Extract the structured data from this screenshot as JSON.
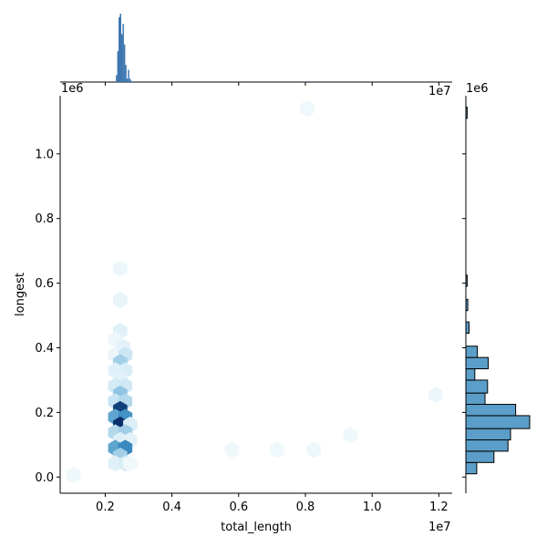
{
  "chart_data": {
    "type": "hexbin",
    "xlabel": "total_length",
    "ylabel": "longest",
    "x_offset_label": "1e7",
    "y_offset_label": "1e6",
    "xlim": [
      0.065,
      1.24
    ],
    "ylim": [
      -0.05,
      1.18
    ],
    "x_ticks": [
      0.2,
      0.4,
      0.6,
      0.8,
      1.0,
      1.2
    ],
    "x_tick_labels": [
      "0.2",
      "0.4",
      "0.6",
      "0.8",
      "1.0",
      "1.2"
    ],
    "y_ticks": [
      0.0,
      0.2,
      0.4,
      0.6,
      0.8,
      1.0
    ],
    "y_tick_labels": [
      "0.0",
      "0.2",
      "0.4",
      "0.6",
      "0.8",
      "1.0"
    ],
    "colormap": [
      "#f7fcfd",
      "#c6e4f3",
      "#6baed6",
      "#2c7fb8",
      "#08306b"
    ],
    "hexbins": [
      {
        "x": 0.245,
        "y": 0.645,
        "c": 0.05
      },
      {
        "x": 0.245,
        "y": 0.548,
        "c": 0.08
      },
      {
        "x": 0.245,
        "y": 0.452,
        "c": 0.12
      },
      {
        "x": 0.23,
        "y": 0.425,
        "c": 0.05
      },
      {
        "x": 0.255,
        "y": 0.402,
        "c": 0.1
      },
      {
        "x": 0.23,
        "y": 0.378,
        "c": 0.06
      },
      {
        "x": 0.26,
        "y": 0.378,
        "c": 0.22
      },
      {
        "x": 0.245,
        "y": 0.355,
        "c": 0.35
      },
      {
        "x": 0.23,
        "y": 0.33,
        "c": 0.12
      },
      {
        "x": 0.26,
        "y": 0.33,
        "c": 0.15
      },
      {
        "x": 0.245,
        "y": 0.305,
        "c": 0.1
      },
      {
        "x": 0.23,
        "y": 0.282,
        "c": 0.18
      },
      {
        "x": 0.26,
        "y": 0.282,
        "c": 0.2
      },
      {
        "x": 0.245,
        "y": 0.258,
        "c": 0.4
      },
      {
        "x": 0.23,
        "y": 0.234,
        "c": 0.25
      },
      {
        "x": 0.26,
        "y": 0.234,
        "c": 0.3
      },
      {
        "x": 0.245,
        "y": 0.21,
        "c": 0.95
      },
      {
        "x": 0.23,
        "y": 0.186,
        "c": 0.55
      },
      {
        "x": 0.26,
        "y": 0.186,
        "c": 0.65
      },
      {
        "x": 0.245,
        "y": 0.162,
        "c": 1.0
      },
      {
        "x": 0.275,
        "y": 0.162,
        "c": 0.15
      },
      {
        "x": 0.23,
        "y": 0.138,
        "c": 0.3
      },
      {
        "x": 0.26,
        "y": 0.138,
        "c": 0.35
      },
      {
        "x": 0.245,
        "y": 0.114,
        "c": 0.12
      },
      {
        "x": 0.275,
        "y": 0.114,
        "c": 0.1
      },
      {
        "x": 0.23,
        "y": 0.09,
        "c": 0.55
      },
      {
        "x": 0.26,
        "y": 0.09,
        "c": 0.7
      },
      {
        "x": 0.245,
        "y": 0.066,
        "c": 0.35
      },
      {
        "x": 0.23,
        "y": 0.042,
        "c": 0.12
      },
      {
        "x": 0.26,
        "y": 0.042,
        "c": 0.15
      },
      {
        "x": 0.275,
        "y": 0.042,
        "c": 0.04
      },
      {
        "x": 0.105,
        "y": 0.006,
        "c": 0.04
      },
      {
        "x": 0.58,
        "y": 0.084,
        "c": 0.04
      },
      {
        "x": 0.715,
        "y": 0.084,
        "c": 0.04
      },
      {
        "x": 0.825,
        "y": 0.084,
        "c": 0.05
      },
      {
        "x": 0.935,
        "y": 0.13,
        "c": 0.04
      },
      {
        "x": 1.19,
        "y": 0.255,
        "c": 0.05
      },
      {
        "x": 0.805,
        "y": 1.14,
        "c": 0.04
      }
    ],
    "top_histogram": {
      "bins_x": [
        0.232,
        0.236,
        0.24,
        0.244,
        0.248,
        0.252,
        0.256,
        0.26,
        0.264,
        0.268,
        0.272,
        0.276,
        0.28,
        0.29,
        0.81
      ],
      "counts": [
        0.1,
        0.45,
        0.95,
        1.0,
        0.7,
        0.85,
        0.55,
        0.25,
        0.05,
        0.18,
        0.05,
        0.02,
        0.01,
        0.01,
        0.015
      ],
      "bin_width": 0.004
    },
    "right_histogram": {
      "bins": [
        {
          "y0": 0.01,
          "y1": 0.045,
          "c": 0.17
        },
        {
          "y0": 0.045,
          "y1": 0.08,
          "c": 0.44
        },
        {
          "y0": 0.08,
          "y1": 0.115,
          "c": 0.66
        },
        {
          "y0": 0.115,
          "y1": 0.15,
          "c": 0.7
        },
        {
          "y0": 0.15,
          "y1": 0.19,
          "c": 1.0
        },
        {
          "y0": 0.19,
          "y1": 0.225,
          "c": 0.78
        },
        {
          "y0": 0.225,
          "y1": 0.26,
          "c": 0.3
        },
        {
          "y0": 0.26,
          "y1": 0.3,
          "c": 0.34
        },
        {
          "y0": 0.3,
          "y1": 0.335,
          "c": 0.14
        },
        {
          "y0": 0.335,
          "y1": 0.37,
          "c": 0.35
        },
        {
          "y0": 0.37,
          "y1": 0.405,
          "c": 0.18
        },
        {
          "y0": 0.445,
          "y1": 0.48,
          "c": 0.05
        },
        {
          "y0": 0.515,
          "y1": 0.55,
          "c": 0.03
        },
        {
          "y0": 0.59,
          "y1": 0.625,
          "c": 0.02
        },
        {
          "y0": 1.11,
          "y1": 1.145,
          "c": 0.02
        }
      ]
    },
    "hist_fill": "#5a9ec9",
    "hist_stroke": "#000000",
    "top_hist_color": "#3b75af"
  }
}
